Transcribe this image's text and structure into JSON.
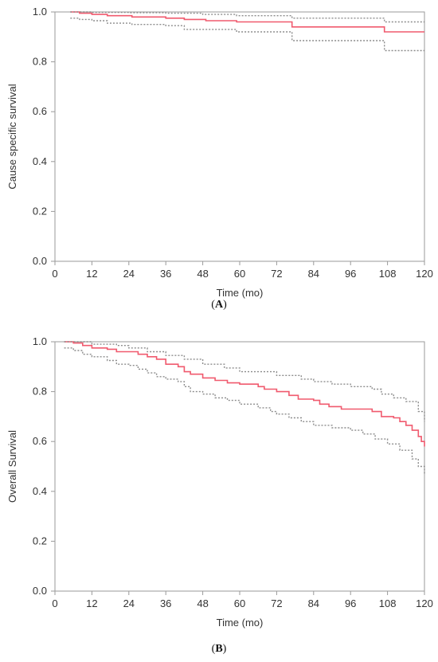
{
  "chart_data": [
    {
      "panel_label": "A",
      "type": "line",
      "title": "",
      "xlabel": "Time (mo)",
      "ylabel": "Cause specific survival",
      "xlim": [
        0,
        120
      ],
      "ylim": [
        0,
        1
      ],
      "x_ticks": [
        "0",
        "12",
        "24",
        "36",
        "48",
        "60",
        "72",
        "84",
        "96",
        "108",
        "120"
      ],
      "y_ticks": [
        "0.0",
        "0.2",
        "0.4",
        "0.6",
        "0.8",
        "1.0"
      ],
      "colors": {
        "estimate": "#f05a6e",
        "ci": "#8c8c8c"
      },
      "series": [
        {
          "role": "estimate",
          "style": "solid",
          "points": [
            [
              5,
              1.0
            ],
            [
              8,
              0.995
            ],
            [
              12,
              0.99
            ],
            [
              16,
              0.99
            ],
            [
              17,
              0.985
            ],
            [
              24,
              0.985
            ],
            [
              25,
              0.98
            ],
            [
              36,
              0.975
            ],
            [
              40,
              0.975
            ],
            [
              42,
              0.97
            ],
            [
              49,
              0.965
            ],
            [
              58,
              0.965
            ],
            [
              59,
              0.96
            ],
            [
              74,
              0.96
            ],
            [
              77,
              0.94
            ],
            [
              106,
              0.94
            ],
            [
              107,
              0.92
            ],
            [
              120,
              0.92
            ]
          ]
        },
        {
          "role": "upper_ci",
          "style": "dotted",
          "points": [
            [
              5,
              1.0
            ],
            [
              10,
              1.0
            ],
            [
              12,
              0.998
            ],
            [
              24,
              0.997
            ],
            [
              36,
              0.995
            ],
            [
              48,
              0.99
            ],
            [
              59,
              0.985
            ],
            [
              77,
              0.975
            ],
            [
              106,
              0.975
            ],
            [
              107,
              0.96
            ],
            [
              120,
              0.96
            ]
          ]
        },
        {
          "role": "lower_ci",
          "style": "dotted",
          "points": [
            [
              5,
              0.975
            ],
            [
              8,
              0.97
            ],
            [
              12,
              0.965
            ],
            [
              17,
              0.955
            ],
            [
              25,
              0.95
            ],
            [
              36,
              0.945
            ],
            [
              42,
              0.93
            ],
            [
              59,
              0.92
            ],
            [
              74,
              0.92
            ],
            [
              77,
              0.885
            ],
            [
              106,
              0.885
            ],
            [
              107,
              0.845
            ],
            [
              120,
              0.845
            ]
          ]
        }
      ]
    },
    {
      "panel_label": "B",
      "type": "line",
      "title": "",
      "xlabel": "Time (mo)",
      "ylabel": "Overall Survival",
      "xlim": [
        0,
        120
      ],
      "ylim": [
        0,
        1
      ],
      "x_ticks": [
        "0",
        "12",
        "24",
        "36",
        "48",
        "60",
        "72",
        "84",
        "96",
        "108",
        "120"
      ],
      "y_ticks": [
        "0.0",
        "0.2",
        "0.4",
        "0.6",
        "0.8",
        "1.0"
      ],
      "colors": {
        "estimate": "#f05a6e",
        "ci": "#8c8c8c"
      },
      "series": [
        {
          "role": "estimate",
          "style": "solid",
          "points": [
            [
              3,
              1.0
            ],
            [
              6,
              0.995
            ],
            [
              9,
              0.985
            ],
            [
              12,
              0.975
            ],
            [
              17,
              0.97
            ],
            [
              20,
              0.96
            ],
            [
              24,
              0.96
            ],
            [
              27,
              0.95
            ],
            [
              30,
              0.94
            ],
            [
              33,
              0.93
            ],
            [
              36,
              0.91
            ],
            [
              40,
              0.9
            ],
            [
              42,
              0.88
            ],
            [
              44,
              0.87
            ],
            [
              48,
              0.855
            ],
            [
              52,
              0.845
            ],
            [
              56,
              0.835
            ],
            [
              60,
              0.83
            ],
            [
              66,
              0.82
            ],
            [
              68,
              0.81
            ],
            [
              72,
              0.8
            ],
            [
              76,
              0.785
            ],
            [
              79,
              0.77
            ],
            [
              84,
              0.765
            ],
            [
              86,
              0.75
            ],
            [
              89,
              0.74
            ],
            [
              93,
              0.73
            ],
            [
              99,
              0.73
            ],
            [
              103,
              0.72
            ],
            [
              106,
              0.7
            ],
            [
              110,
              0.695
            ],
            [
              112,
              0.68
            ],
            [
              114,
              0.665
            ],
            [
              116,
              0.645
            ],
            [
              118,
              0.62
            ],
            [
              119,
              0.6
            ],
            [
              120,
              0.58
            ]
          ]
        },
        {
          "role": "upper_ci",
          "style": "dotted",
          "points": [
            [
              3,
              1.0
            ],
            [
              8,
              1.0
            ],
            [
              12,
              0.99
            ],
            [
              20,
              0.985
            ],
            [
              24,
              0.975
            ],
            [
              30,
              0.96
            ],
            [
              36,
              0.945
            ],
            [
              42,
              0.93
            ],
            [
              48,
              0.91
            ],
            [
              55,
              0.895
            ],
            [
              60,
              0.88
            ],
            [
              72,
              0.865
            ],
            [
              80,
              0.85
            ],
            [
              84,
              0.84
            ],
            [
              90,
              0.83
            ],
            [
              96,
              0.82
            ],
            [
              103,
              0.81
            ],
            [
              106,
              0.79
            ],
            [
              110,
              0.775
            ],
            [
              114,
              0.76
            ],
            [
              118,
              0.72
            ],
            [
              120,
              0.68
            ]
          ]
        },
        {
          "role": "lower_ci",
          "style": "dotted",
          "points": [
            [
              3,
              0.975
            ],
            [
              6,
              0.965
            ],
            [
              9,
              0.95
            ],
            [
              12,
              0.94
            ],
            [
              17,
              0.925
            ],
            [
              20,
              0.91
            ],
            [
              24,
              0.905
            ],
            [
              27,
              0.89
            ],
            [
              30,
              0.875
            ],
            [
              33,
              0.86
            ],
            [
              36,
              0.85
            ],
            [
              40,
              0.84
            ],
            [
              42,
              0.82
            ],
            [
              44,
              0.8
            ],
            [
              48,
              0.79
            ],
            [
              52,
              0.775
            ],
            [
              56,
              0.765
            ],
            [
              60,
              0.75
            ],
            [
              66,
              0.735
            ],
            [
              70,
              0.72
            ],
            [
              72,
              0.71
            ],
            [
              76,
              0.695
            ],
            [
              80,
              0.68
            ],
            [
              84,
              0.665
            ],
            [
              90,
              0.655
            ],
            [
              96,
              0.645
            ],
            [
              100,
              0.63
            ],
            [
              104,
              0.61
            ],
            [
              108,
              0.59
            ],
            [
              112,
              0.565
            ],
            [
              116,
              0.53
            ],
            [
              118,
              0.5
            ],
            [
              120,
              0.47
            ]
          ]
        }
      ]
    }
  ]
}
